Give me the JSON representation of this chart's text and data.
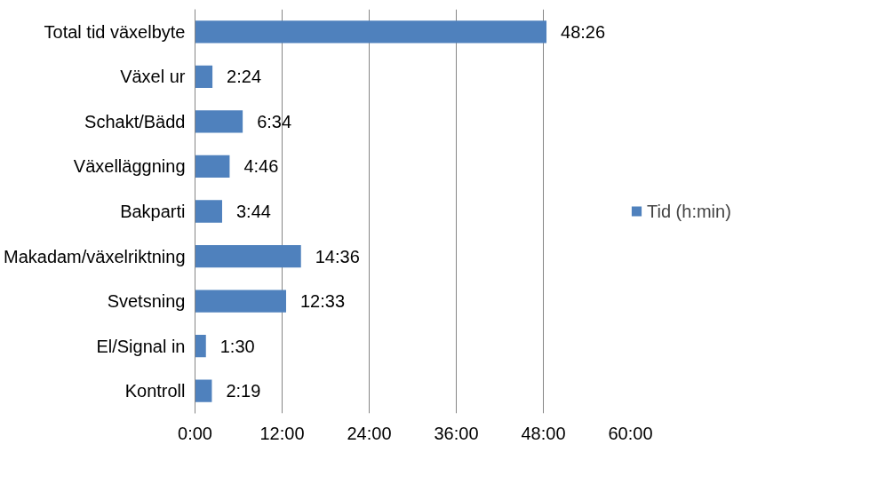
{
  "chart_data": {
    "type": "bar",
    "orientation": "horizontal",
    "categories": [
      "Total tid växelbyte",
      "Växel ur",
      "Schakt/Bädd",
      "Växelläggning",
      "Bakparti",
      "Makadam/växelriktning",
      "Svetsning",
      "El/Signal in",
      "Kontroll"
    ],
    "series": [
      {
        "name": "Tid (h:min)",
        "color": "#4f81bd",
        "values": [
          48.433,
          2.4,
          6.567,
          4.767,
          3.733,
          14.6,
          12.55,
          1.5,
          2.317
        ],
        "value_labels": [
          "48:26",
          "2:24",
          "6:34",
          "4:46",
          "3:44",
          "14:36",
          "12:33",
          "1:30",
          "2:19"
        ]
      }
    ],
    "xlim": [
      0,
      60
    ],
    "xticks": [
      {
        "value": 0,
        "label": "0:00"
      },
      {
        "value": 12,
        "label": "12:00"
      },
      {
        "value": 24,
        "label": "24:00"
      },
      {
        "value": 36,
        "label": "36:00"
      },
      {
        "value": 48,
        "label": "48:00"
      },
      {
        "value": 60,
        "label": "60:00"
      }
    ],
    "grid": "x",
    "legend": "right"
  }
}
